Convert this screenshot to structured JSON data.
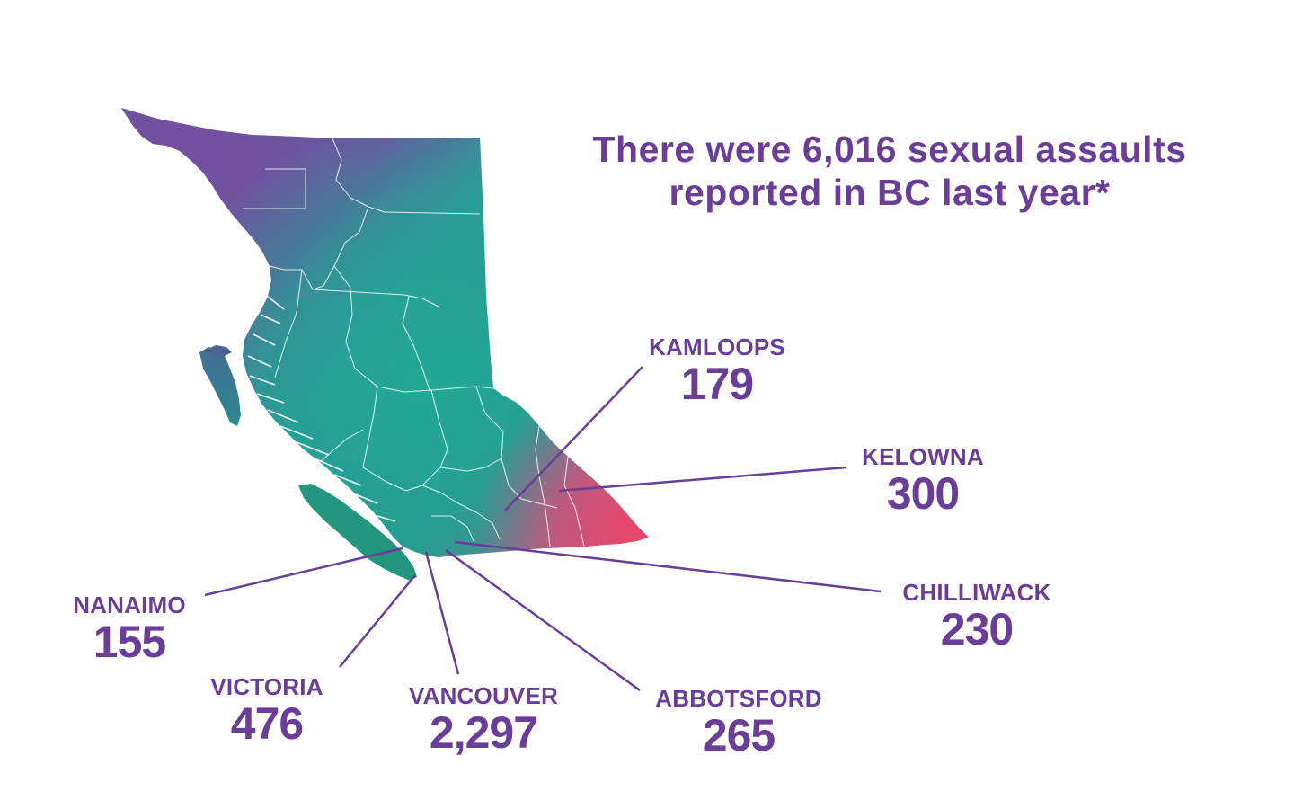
{
  "headline": {
    "line1": "There were 6,016 sexual assaults",
    "line2": "reported in BC last year*"
  },
  "colors": {
    "text": "#6a3e98",
    "map_purple": "#6f4f9e",
    "map_teal": "#26a497",
    "map_pink": "#e0486c",
    "leader_line": "#6a3e98",
    "border_lines": "#ffffff"
  },
  "cities": [
    {
      "id": "kamloops",
      "name": "KAMLOOPS",
      "count": "179"
    },
    {
      "id": "kelowna",
      "name": "KELOWNA",
      "count": "300"
    },
    {
      "id": "chilliwack",
      "name": "CHILLIWACK",
      "count": "230"
    },
    {
      "id": "abbotsford",
      "name": "ABBOTSFORD",
      "count": "265"
    },
    {
      "id": "vancouver",
      "name": "VANCOUVER",
      "count": "2,297"
    },
    {
      "id": "victoria",
      "name": "VICTORIA",
      "count": "476"
    },
    {
      "id": "nanaimo",
      "name": "NANAIMO",
      "count": "155"
    }
  ]
}
